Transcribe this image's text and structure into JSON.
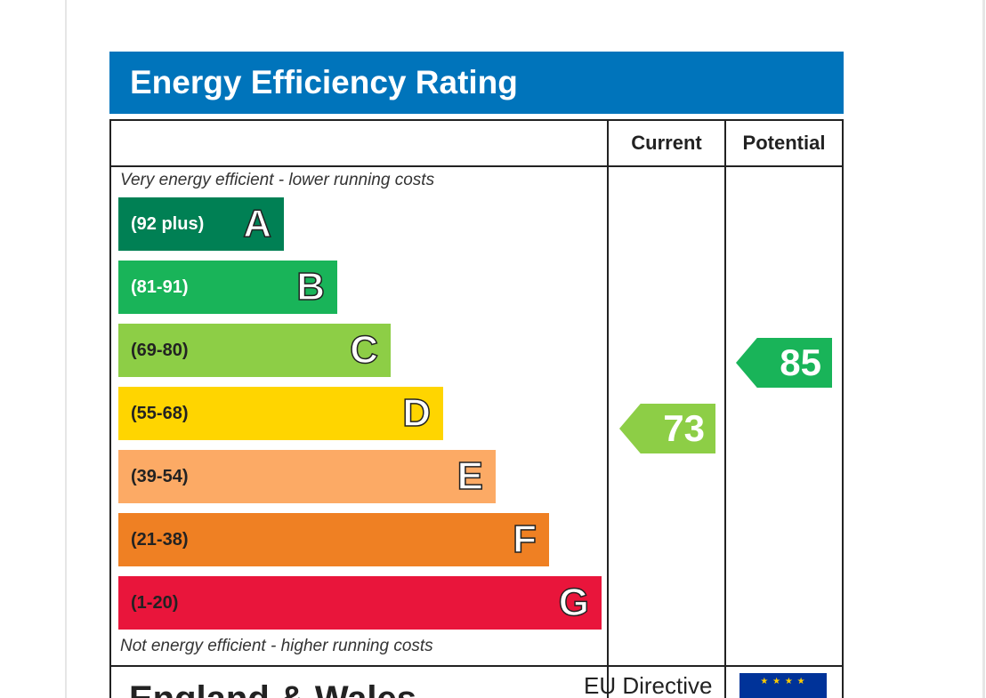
{
  "title": "Energy Efficiency Rating",
  "columns": {
    "current": "Current",
    "potential": "Potential"
  },
  "notes": {
    "top": "Very energy efficient - lower running costs",
    "bottom": "Not energy efficient - higher running costs"
  },
  "bands": [
    {
      "letter": "A",
      "range": "(92 plus)",
      "color": "#008054",
      "text_color": "#ffffff"
    },
    {
      "letter": "B",
      "range": "(81-91)",
      "color": "#19b459",
      "text_color": "#ffffff"
    },
    {
      "letter": "C",
      "range": "(69-80)",
      "color": "#8dce46",
      "text_color": "#222222"
    },
    {
      "letter": "D",
      "range": "(55-68)",
      "color": "#ffd500",
      "text_color": "#222222"
    },
    {
      "letter": "E",
      "range": "(39-54)",
      "color": "#fcaa65",
      "text_color": "#222222"
    },
    {
      "letter": "F",
      "range": "(21-38)",
      "color": "#ef8023",
      "text_color": "#222222"
    },
    {
      "letter": "G",
      "range": "(1-20)",
      "color": "#e9153b",
      "text_color": "#222222"
    }
  ],
  "current_rating": {
    "value": "73",
    "band": "C",
    "color": "#8dce46"
  },
  "potential_rating": {
    "value": "85",
    "band": "B",
    "color": "#19b459"
  },
  "footer": {
    "region": "England & Wales",
    "directive": "EU Directive"
  },
  "colors": {
    "title_bar": "#0074bb",
    "eu_flag": "#003399",
    "eu_stars": "#ffcc00"
  }
}
